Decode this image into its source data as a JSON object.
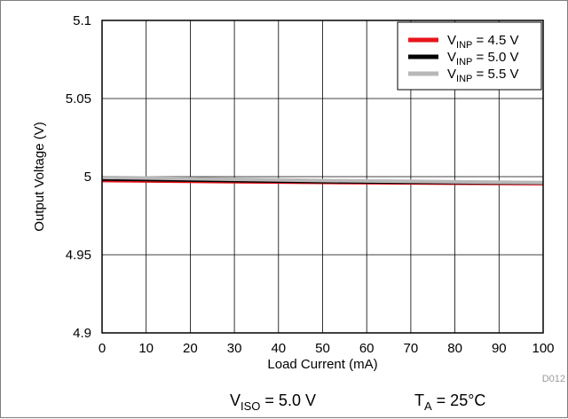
{
  "chart_data": {
    "type": "line",
    "xlabel": "Load Current (mA)",
    "ylabel": "Output Voltage (V)",
    "xlim": [
      0,
      100
    ],
    "ylim": [
      4.9,
      5.1
    ],
    "x_ticks": [
      0,
      10,
      20,
      30,
      40,
      50,
      60,
      70,
      80,
      90,
      100
    ],
    "y_ticks": [
      4.9,
      4.95,
      5.0,
      5.05,
      5.1
    ],
    "x_tick_labels": [
      "0",
      "10",
      "20",
      "30",
      "40",
      "50",
      "60",
      "70",
      "80",
      "90",
      "100"
    ],
    "y_tick_labels": [
      "4.9",
      "4.95",
      "5",
      "5.05",
      "5.1"
    ],
    "grid": true,
    "legend_position": "top-right",
    "series": [
      {
        "name": "V_INP = 4.5 V",
        "legend_main": "V",
        "legend_sub": "INP",
        "legend_rest": " = 4.5 V",
        "color": "#e8141b",
        "x": [
          0,
          50,
          100
        ],
        "y": [
          4.9975,
          4.9963,
          4.9955
        ]
      },
      {
        "name": "V_INP = 5.0 V",
        "legend_main": "V",
        "legend_sub": "INP",
        "legend_rest": " = 5.0 V",
        "color": "#000000",
        "x": [
          0,
          50,
          100
        ],
        "y": [
          4.9985,
          4.9968,
          4.996
        ]
      },
      {
        "name": "V_INP = 5.5 V",
        "legend_main": "V",
        "legend_sub": "INP",
        "legend_rest": " = 5.5 V",
        "color": "#b8b8b8",
        "x": [
          0,
          50,
          100
        ],
        "y": [
          4.9995,
          4.9975,
          4.9962
        ]
      }
    ],
    "conditions": [
      {
        "main": "V",
        "sub": "ISO",
        "rest": " = 5.0 V"
      },
      {
        "main": "T",
        "sub": "A",
        "rest": " = 25°C"
      }
    ],
    "figure_code": "D012"
  }
}
